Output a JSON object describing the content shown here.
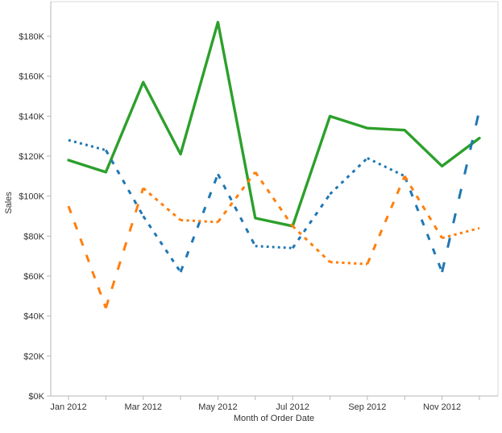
{
  "chart_data": {
    "type": "line",
    "title": "",
    "xlabel": "Month of Order Date",
    "ylabel": "Sales",
    "unit": "$K (USD thousands)",
    "legend": "none visible",
    "grid": "off",
    "months": [
      "Jan 2012",
      "Feb 2012",
      "Mar 2012",
      "Apr 2012",
      "May 2012",
      "Jun 2012",
      "Jul 2012",
      "Aug 2012",
      "Sep 2012",
      "Oct 2012",
      "Nov 2012",
      "Dec 2012"
    ],
    "x_axis_labeled_months": [
      "Jan 2012",
      "Mar 2012",
      "May 2012",
      "Jul 2012",
      "Sep 2012",
      "Nov 2012"
    ],
    "y_tick_values": [
      0,
      20,
      40,
      60,
      80,
      100,
      120,
      140,
      160,
      180
    ],
    "y_tick_labels": [
      "$0K",
      "$20K",
      "$40K",
      "$60K",
      "$80K",
      "$100K",
      "$120K",
      "$140K",
      "$160K",
      "$180K"
    ],
    "ylim": [
      0,
      197
    ],
    "series": [
      {
        "name": "green-solid-line",
        "color": "#2ca02c",
        "style": "solid",
        "values": [
          118,
          112,
          157,
          121,
          187,
          89,
          85,
          140,
          134,
          133,
          115,
          129
        ]
      },
      {
        "name": "blue-dashed-line",
        "color": "#1f77b4",
        "style": "dashed",
        "values": [
          128,
          123,
          90,
          62,
          111,
          75,
          74,
          101,
          119,
          110,
          62,
          143
        ]
      },
      {
        "name": "orange-dashed-line",
        "color": "#ff7f0e",
        "style": "dashed",
        "values": [
          95,
          44,
          104,
          88,
          87,
          112,
          85,
          67,
          66,
          110,
          79,
          84
        ]
      }
    ],
    "axis_colors": {
      "axis_line": "#b7b7b7",
      "plot_border": "#d9d9d9",
      "tick_mark": "#b7b7b7",
      "label_text": "#333333"
    }
  }
}
